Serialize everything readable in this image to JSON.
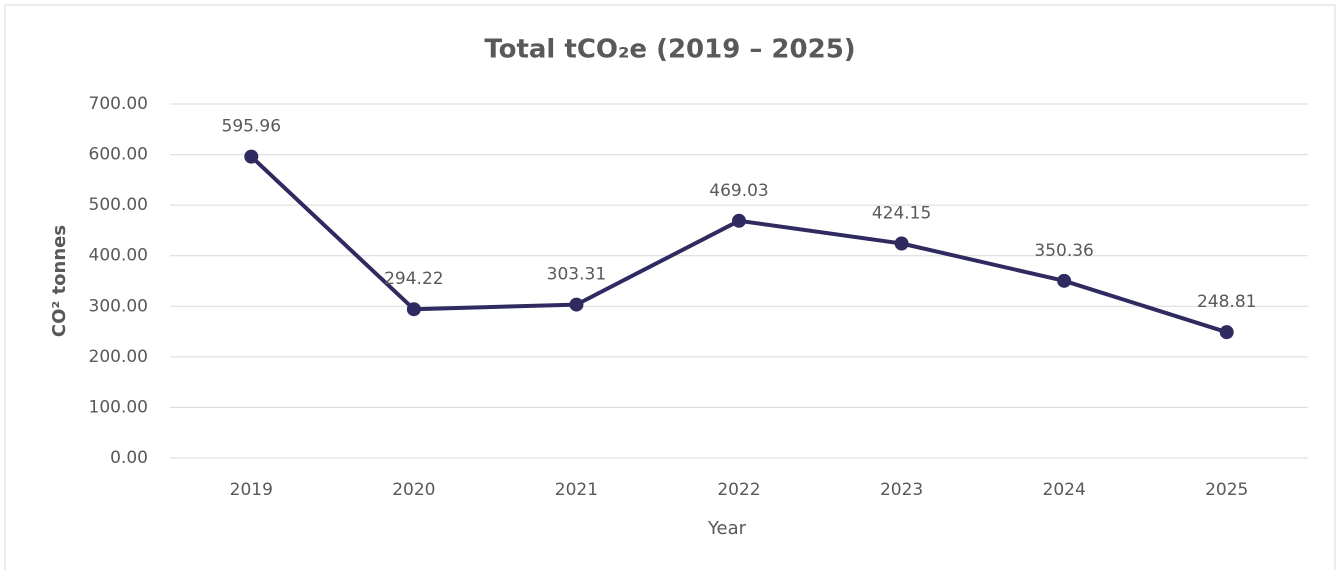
{
  "chart_data": {
    "type": "line",
    "title": "Total tCO₂e (2019 – 2025)",
    "x_label": "Year",
    "y_label": "CO² tonnes",
    "categories": [
      "2019",
      "2020",
      "2021",
      "2022",
      "2023",
      "2024",
      "2025"
    ],
    "series": [
      {
        "name": "Total tCO₂e",
        "color": "#2f2a5f",
        "values": [
          595.96,
          294.22,
          303.31,
          469.03,
          424.15,
          350.36,
          248.81
        ]
      }
    ],
    "ylim": [
      0,
      700
    ],
    "yticks": [
      {
        "value": 0,
        "label": "0.00"
      },
      {
        "value": 100,
        "label": "100.00"
      },
      {
        "value": 200,
        "label": "200.00"
      },
      {
        "value": 300,
        "label": "300.00"
      },
      {
        "value": 400,
        "label": "400.00"
      },
      {
        "value": 500,
        "label": "500.00"
      },
      {
        "value": 600,
        "label": "600.00"
      },
      {
        "value": 700,
        "label": "700.00"
      }
    ],
    "grid": true
  }
}
